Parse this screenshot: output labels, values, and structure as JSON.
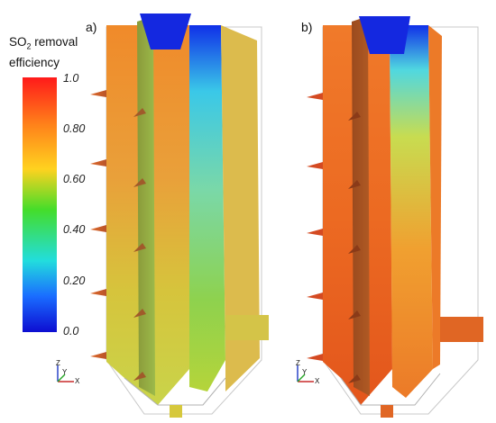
{
  "legend": {
    "title_main": "SO",
    "title_sub": "2",
    "title_rest": " removal",
    "title_line2": "efficiency",
    "ticks": [
      "1.0",
      "0.80",
      "0.60",
      "0.40",
      "0.20",
      "0.0"
    ],
    "colors": [
      "#ff1a1a",
      "#ff7f1a",
      "#ffd21f",
      "#44dd2a",
      "#22dddd",
      "#1a6cff",
      "#0d0dd1"
    ]
  },
  "panels": {
    "a_label": "a)",
    "b_label": "b)"
  },
  "axes": {
    "z": "Z",
    "y": "Y",
    "x": "X"
  }
}
